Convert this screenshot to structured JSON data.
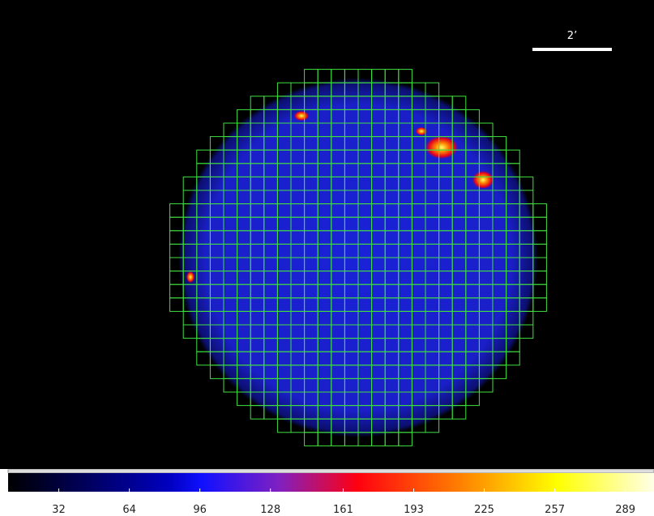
{
  "scale_bar": {
    "label": "2’"
  },
  "colorbar": {
    "range": [
      9,
      302
    ],
    "ticks": [
      32,
      64,
      96,
      128,
      161,
      193,
      225,
      257,
      289
    ]
  }
}
